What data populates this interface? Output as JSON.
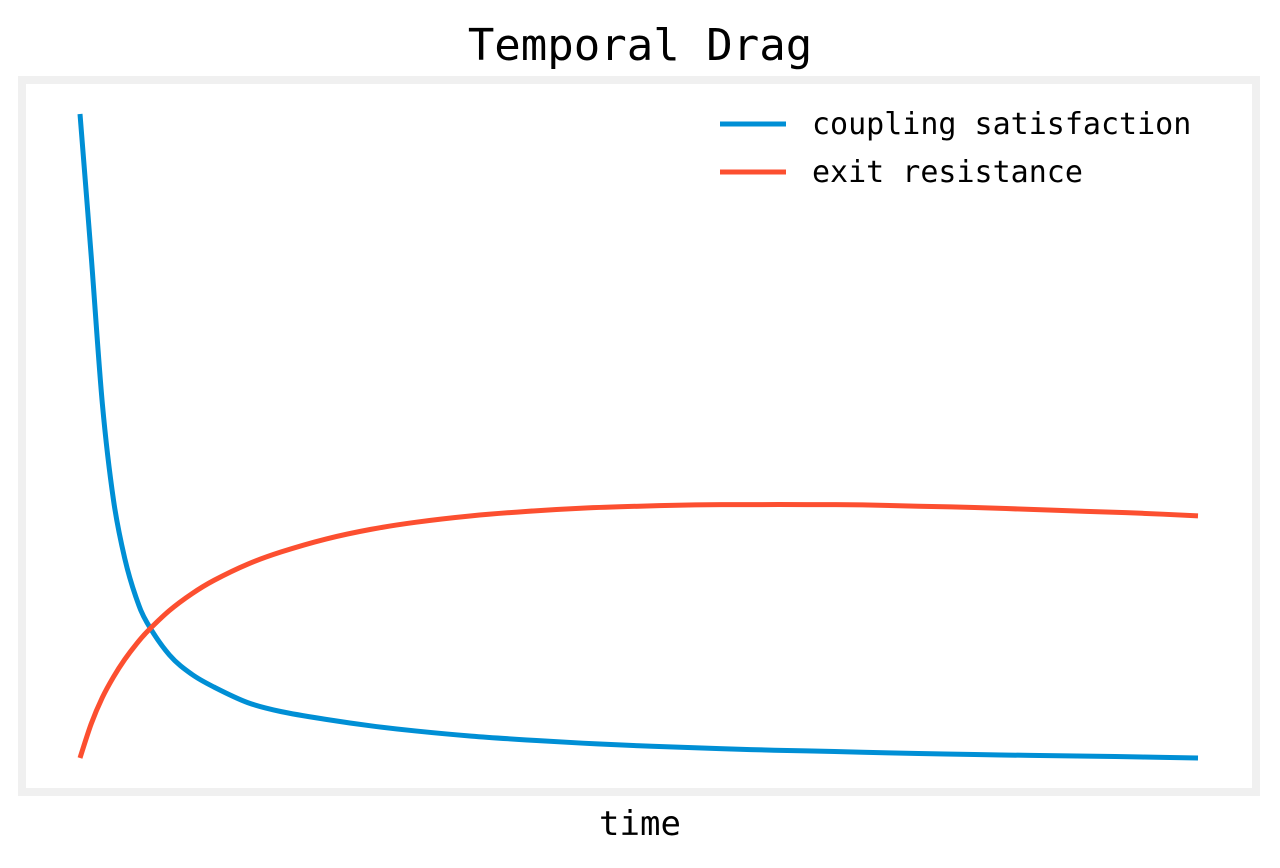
{
  "chart_data": {
    "type": "line",
    "title": "Temporal Drag",
    "xlabel": "time",
    "ylabel": "",
    "xlim": [
      0,
      100
    ],
    "ylim": [
      0,
      100
    ],
    "grid": false,
    "legend_position": "top-right",
    "axis_ticks_shown": false,
    "frame_color": "#f0f0f0",
    "background_color": "#ffffff",
    "series": [
      {
        "name": "coupling satisfaction",
        "color": "#008fd5",
        "x": [
          0,
          1,
          2,
          3,
          4,
          5,
          6,
          8,
          10,
          12,
          15,
          18,
          22,
          26,
          30,
          35,
          40,
          45,
          50,
          55,
          60,
          65,
          70,
          75,
          80,
          85,
          90,
          95,
          100
        ],
        "y": [
          100,
          78,
          55,
          40,
          31,
          25,
          21,
          16,
          13,
          11,
          8.6,
          7.2,
          6.0,
          5.0,
          4.2,
          3.4,
          2.8,
          2.3,
          1.9,
          1.6,
          1.3,
          1.1,
          0.9,
          0.7,
          0.55,
          0.4,
          0.3,
          0.15,
          0
        ]
      },
      {
        "name": "exit resistance",
        "color": "#fc4f30",
        "x": [
          0,
          1,
          2,
          3,
          4,
          5,
          6,
          8,
          10,
          12,
          15,
          18,
          22,
          26,
          30,
          35,
          40,
          45,
          50,
          55,
          60,
          65,
          70,
          75,
          80,
          85,
          90,
          95,
          100
        ],
        "y": [
          0,
          5.3,
          9.4,
          12.6,
          15.3,
          17.6,
          19.6,
          22.9,
          25.5,
          27.6,
          30.1,
          32.0,
          34.0,
          35.5,
          36.6,
          37.6,
          38.3,
          38.8,
          39.1,
          39.3,
          39.35,
          39.35,
          39.3,
          39.1,
          38.9,
          38.6,
          38.3,
          38.0,
          37.6
        ]
      }
    ]
  }
}
